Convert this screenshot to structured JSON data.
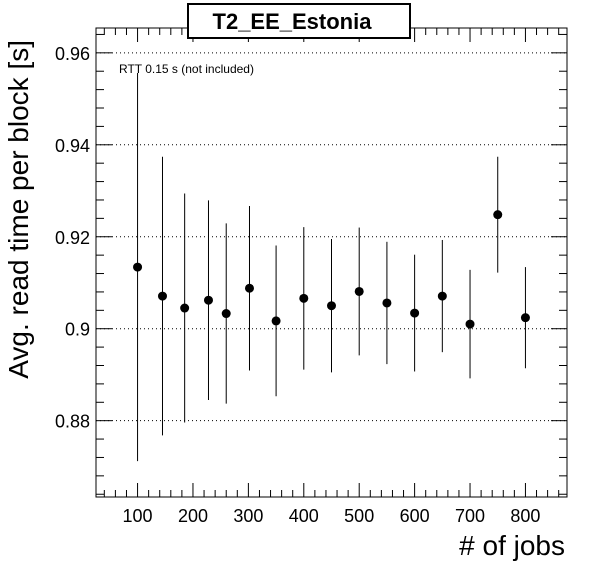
{
  "chart_data": {
    "type": "scatter",
    "title": "T2_EE_Estonia",
    "xlabel": "# of jobs",
    "ylabel": "Avg. read time per block [s]",
    "annotation": "RTT 0.15 s (not included)",
    "xlim": [
      25,
      875
    ],
    "ylim": [
      0.8634,
      0.9654
    ],
    "x_ticks": [
      100,
      200,
      300,
      400,
      500,
      600,
      700,
      800
    ],
    "x_tick_labels": [
      "100",
      "200",
      "300",
      "400",
      "500",
      "600",
      "700",
      "800"
    ],
    "y_ticks": [
      0.88,
      0.9,
      0.92,
      0.94,
      0.96
    ],
    "y_tick_labels": [
      "0.88",
      "0.9",
      "0.92",
      "0.94",
      "0.96"
    ],
    "grid": "horizontal-dotted",
    "series": [
      {
        "points": [
          {
            "x": 100,
            "y": 0.9134,
            "err": 0.0422
          },
          {
            "x": 145,
            "y": 0.9071,
            "err": 0.0303
          },
          {
            "x": 185,
            "y": 0.9045,
            "err": 0.0249
          },
          {
            "x": 228,
            "y": 0.9062,
            "err": 0.0217
          },
          {
            "x": 260,
            "y": 0.9033,
            "err": 0.0196
          },
          {
            "x": 302,
            "y": 0.9088,
            "err": 0.0179
          },
          {
            "x": 350,
            "y": 0.9017,
            "err": 0.0164
          },
          {
            "x": 400,
            "y": 0.9066,
            "err": 0.0155
          },
          {
            "x": 450,
            "y": 0.905,
            "err": 0.0145
          },
          {
            "x": 500,
            "y": 0.9081,
            "err": 0.0139
          },
          {
            "x": 550,
            "y": 0.9056,
            "err": 0.0133
          },
          {
            "x": 600,
            "y": 0.9034,
            "err": 0.0127
          },
          {
            "x": 650,
            "y": 0.9071,
            "err": 0.0122
          },
          {
            "x": 700,
            "y": 0.901,
            "err": 0.0118
          },
          {
            "x": 750,
            "y": 0.9248,
            "err": 0.0126
          },
          {
            "x": 800,
            "y": 0.9024,
            "err": 0.011
          }
        ]
      }
    ]
  }
}
